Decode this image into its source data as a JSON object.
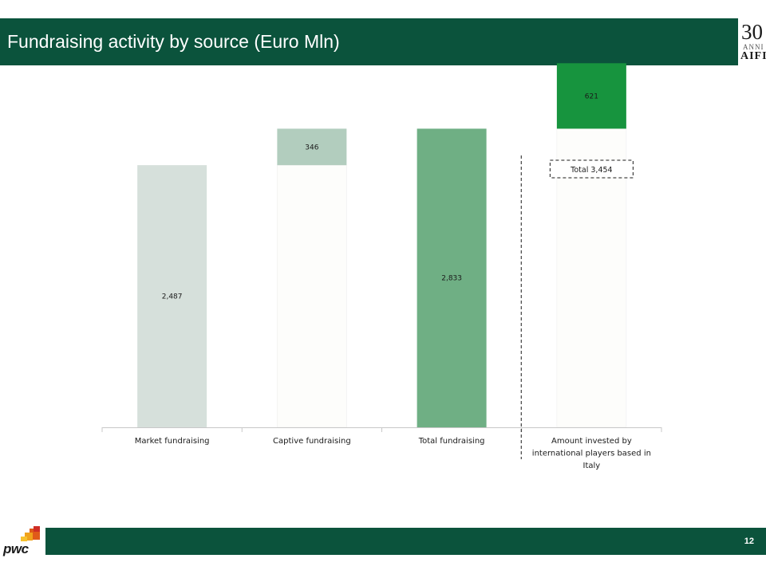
{
  "header": {
    "title": "Fundraising activity by source (Euro Mln)",
    "logo_number": "30",
    "logo_sub": "ANNI",
    "logo_name": "AIFI"
  },
  "footer": {
    "page_number": "12",
    "brand": "pwc"
  },
  "chart_data": {
    "type": "bar",
    "stacked": true,
    "title": "Fundraising activity by source (Euro Mln)",
    "categories": [
      "Market fundraising",
      "Captive fundraising",
      "Total fundraising",
      "Amount invested by international players based in Italy"
    ],
    "category_lines": [
      [
        "Market fundraising"
      ],
      [
        "Captive fundraising"
      ],
      [
        "Total fundraising"
      ],
      [
        "Amount invested by",
        "international players based in",
        "Italy"
      ]
    ],
    "series": [
      {
        "values": [
          2487,
          null,
          2833,
          null
        ],
        "labels": [
          "2,487",
          "",
          "2,833",
          ""
        ],
        "colors": [
          "#d6e0db",
          "",
          "#6faf84",
          ""
        ]
      },
      {
        "values": [
          null,
          346,
          null,
          621
        ],
        "labels": [
          "",
          "346",
          "",
          "621"
        ],
        "colors": [
          "",
          "#b2cdbe",
          "",
          "#17943e"
        ]
      }
    ],
    "base_offsets": [
      0,
      2487,
      0,
      2833
    ],
    "total_annotation": "Total 3,454",
    "ylim": [
      0,
      3600
    ],
    "grid": false,
    "legend": "none",
    "invisible_base_color": "#fdfdfb",
    "axis_color": "#c8c8c8",
    "separator_color": "#1a1a1a"
  }
}
